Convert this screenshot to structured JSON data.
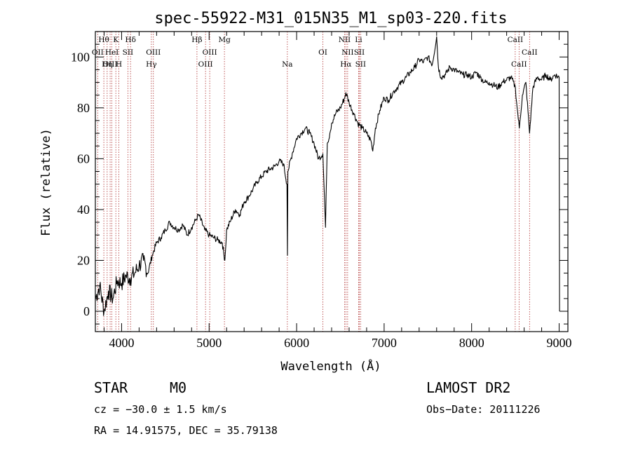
{
  "chart_data": {
    "type": "line",
    "title": "spec-55922-M31_015N35_M1_sp03-220.fits",
    "xlabel": "Wavelength (Å)",
    "ylabel": "Flux (relative)",
    "xlim": [
      3700,
      9100
    ],
    "ylim": [
      -8,
      110
    ],
    "xticks": [
      "4000",
      "5000",
      "6000",
      "7000",
      "8000",
      "9000"
    ],
    "yticks": [
      "0",
      "20",
      "40",
      "60",
      "80",
      "100"
    ],
    "colors": {
      "spectrum": "#000000",
      "line_markers": "#b03030"
    },
    "series": [
      {
        "x": [
          3700,
          3750,
          3800,
          3850,
          3900,
          3950,
          4000,
          4050,
          4100,
          4150,
          4200,
          4250,
          4300,
          4350,
          4400,
          4450,
          4500,
          4550,
          4600,
          4650,
          4700,
          4750,
          4800,
          4850,
          4880,
          4950,
          5000,
          5050,
          5100,
          5150,
          5180,
          5200,
          5250,
          5300,
          5350,
          5400,
          5450,
          5500,
          5550,
          5600,
          5650,
          5700,
          5750,
          5800,
          5850,
          5890,
          5895,
          5900,
          5950,
          6000,
          6050,
          6100,
          6150,
          6200,
          6250,
          6300,
          6330,
          6350,
          6380,
          6400,
          6450,
          6500,
          6550,
          6563,
          6600,
          6650,
          6700,
          6750,
          6800,
          6850,
          6870,
          6900,
          6950,
          7000,
          7050,
          7100,
          7150,
          7200,
          7250,
          7300,
          7350,
          7400,
          7450,
          7500,
          7550,
          7600,
          7620,
          7650,
          7700,
          7750,
          7800,
          7850,
          7900,
          7950,
          8000,
          8050,
          8100,
          8150,
          8200,
          8250,
          8300,
          8350,
          8400,
          8450,
          8500,
          8520,
          8545,
          8580,
          8620,
          8662,
          8700,
          8750,
          8800,
          8850,
          8900,
          8950,
          9000,
          9005
        ],
        "y": [
          5,
          10,
          0,
          8,
          5,
          12,
          11,
          14,
          13,
          15,
          18,
          20,
          15,
          22,
          27,
          29,
          32,
          35,
          33,
          32,
          34,
          30,
          33,
          36,
          38,
          32,
          30,
          29,
          28,
          27,
          20,
          32,
          36,
          40,
          38,
          43,
          45,
          48,
          51,
          53,
          55,
          56,
          57,
          59,
          58,
          50,
          22,
          55,
          62,
          68,
          70,
          72,
          70,
          66,
          60,
          62,
          33,
          66,
          70,
          74,
          78,
          80,
          84,
          86,
          82,
          78,
          74,
          72,
          70,
          67,
          63,
          72,
          79,
          84,
          83,
          86,
          88,
          90,
          92,
          94,
          96,
          99,
          98,
          100,
          97,
          108,
          96,
          92,
          93,
          96,
          95,
          94,
          93,
          93,
          92,
          94,
          92,
          90,
          90,
          89,
          88,
          90,
          91,
          92,
          88,
          80,
          72,
          85,
          90,
          70,
          88,
          92,
          91,
          93,
          91,
          93,
          92,
          0
        ]
      }
    ],
    "spectral_lines": [
      {
        "label": "Hθ",
        "x": 3797,
        "row": 0
      },
      {
        "label": "OII",
        "x": 3727,
        "row": 1
      },
      {
        "label": "OIII",
        "x": 3869,
        "row": 2
      },
      {
        "label": "Hη",
        "x": 3835,
        "row": 2
      },
      {
        "label": "HeI",
        "x": 3889,
        "row": 1
      },
      {
        "label": "K",
        "x": 3934,
        "row": 0
      },
      {
        "label": "H",
        "x": 3969,
        "row": 2
      },
      {
        "label": "SII",
        "x": 4072,
        "row": 1
      },
      {
        "label": "Hδ",
        "x": 4102,
        "row": 0
      },
      {
        "label": "OIII",
        "x": 4363,
        "row": 1
      },
      {
        "label": "Hγ",
        "x": 4340,
        "row": 2
      },
      {
        "label": "Hβ",
        "x": 4861,
        "row": 0
      },
      {
        "label": "OIII",
        "x": 4959,
        "row": 2
      },
      {
        "label": "OIII",
        "x": 5007,
        "row": 1
      },
      {
        "label": "Mg",
        "x": 5175,
        "row": 0
      },
      {
        "label": "Na",
        "x": 5894,
        "row": 2
      },
      {
        "label": "OI",
        "x": 6300,
        "row": 1
      },
      {
        "label": "NII",
        "x": 6548,
        "row": 0
      },
      {
        "label": "Hα",
        "x": 6563,
        "row": 2
      },
      {
        "label": "NII",
        "x": 6583,
        "row": 1
      },
      {
        "label": "Li",
        "x": 6708,
        "row": 0
      },
      {
        "label": "SII",
        "x": 6716,
        "row": 1
      },
      {
        "label": "SII",
        "x": 6731,
        "row": 2
      },
      {
        "label": "CaII",
        "x": 8498,
        "row": 0
      },
      {
        "label": "CaII",
        "x": 8542,
        "row": 2
      },
      {
        "label": "CaII",
        "x": 8662,
        "row": 1
      }
    ]
  },
  "info": {
    "class": "STAR",
    "subclass": "M0",
    "survey": "LAMOST DR2",
    "cz": "cz = −30.0 ± 1.5 km/s",
    "obs_date": "Obs−Date: 20111226",
    "coords": "RA =  14.91575, DEC =  35.79138"
  }
}
